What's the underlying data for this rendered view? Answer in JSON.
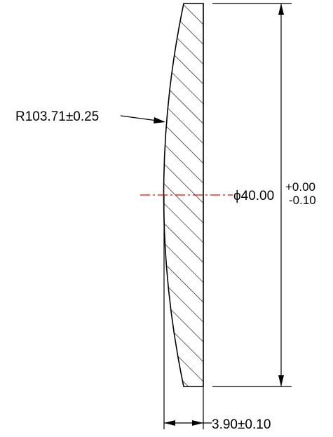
{
  "drawing": {
    "radius_label": "R103.71±0.25",
    "diameter_label": "ϕ40.00",
    "diameter_tol_upper": "+0.00",
    "diameter_tol_lower": "-0.10",
    "thickness_label": "3.90±0.10"
  },
  "colors": {
    "line": "#000000",
    "centerline": "#ff0000",
    "background": "#ffffff"
  }
}
